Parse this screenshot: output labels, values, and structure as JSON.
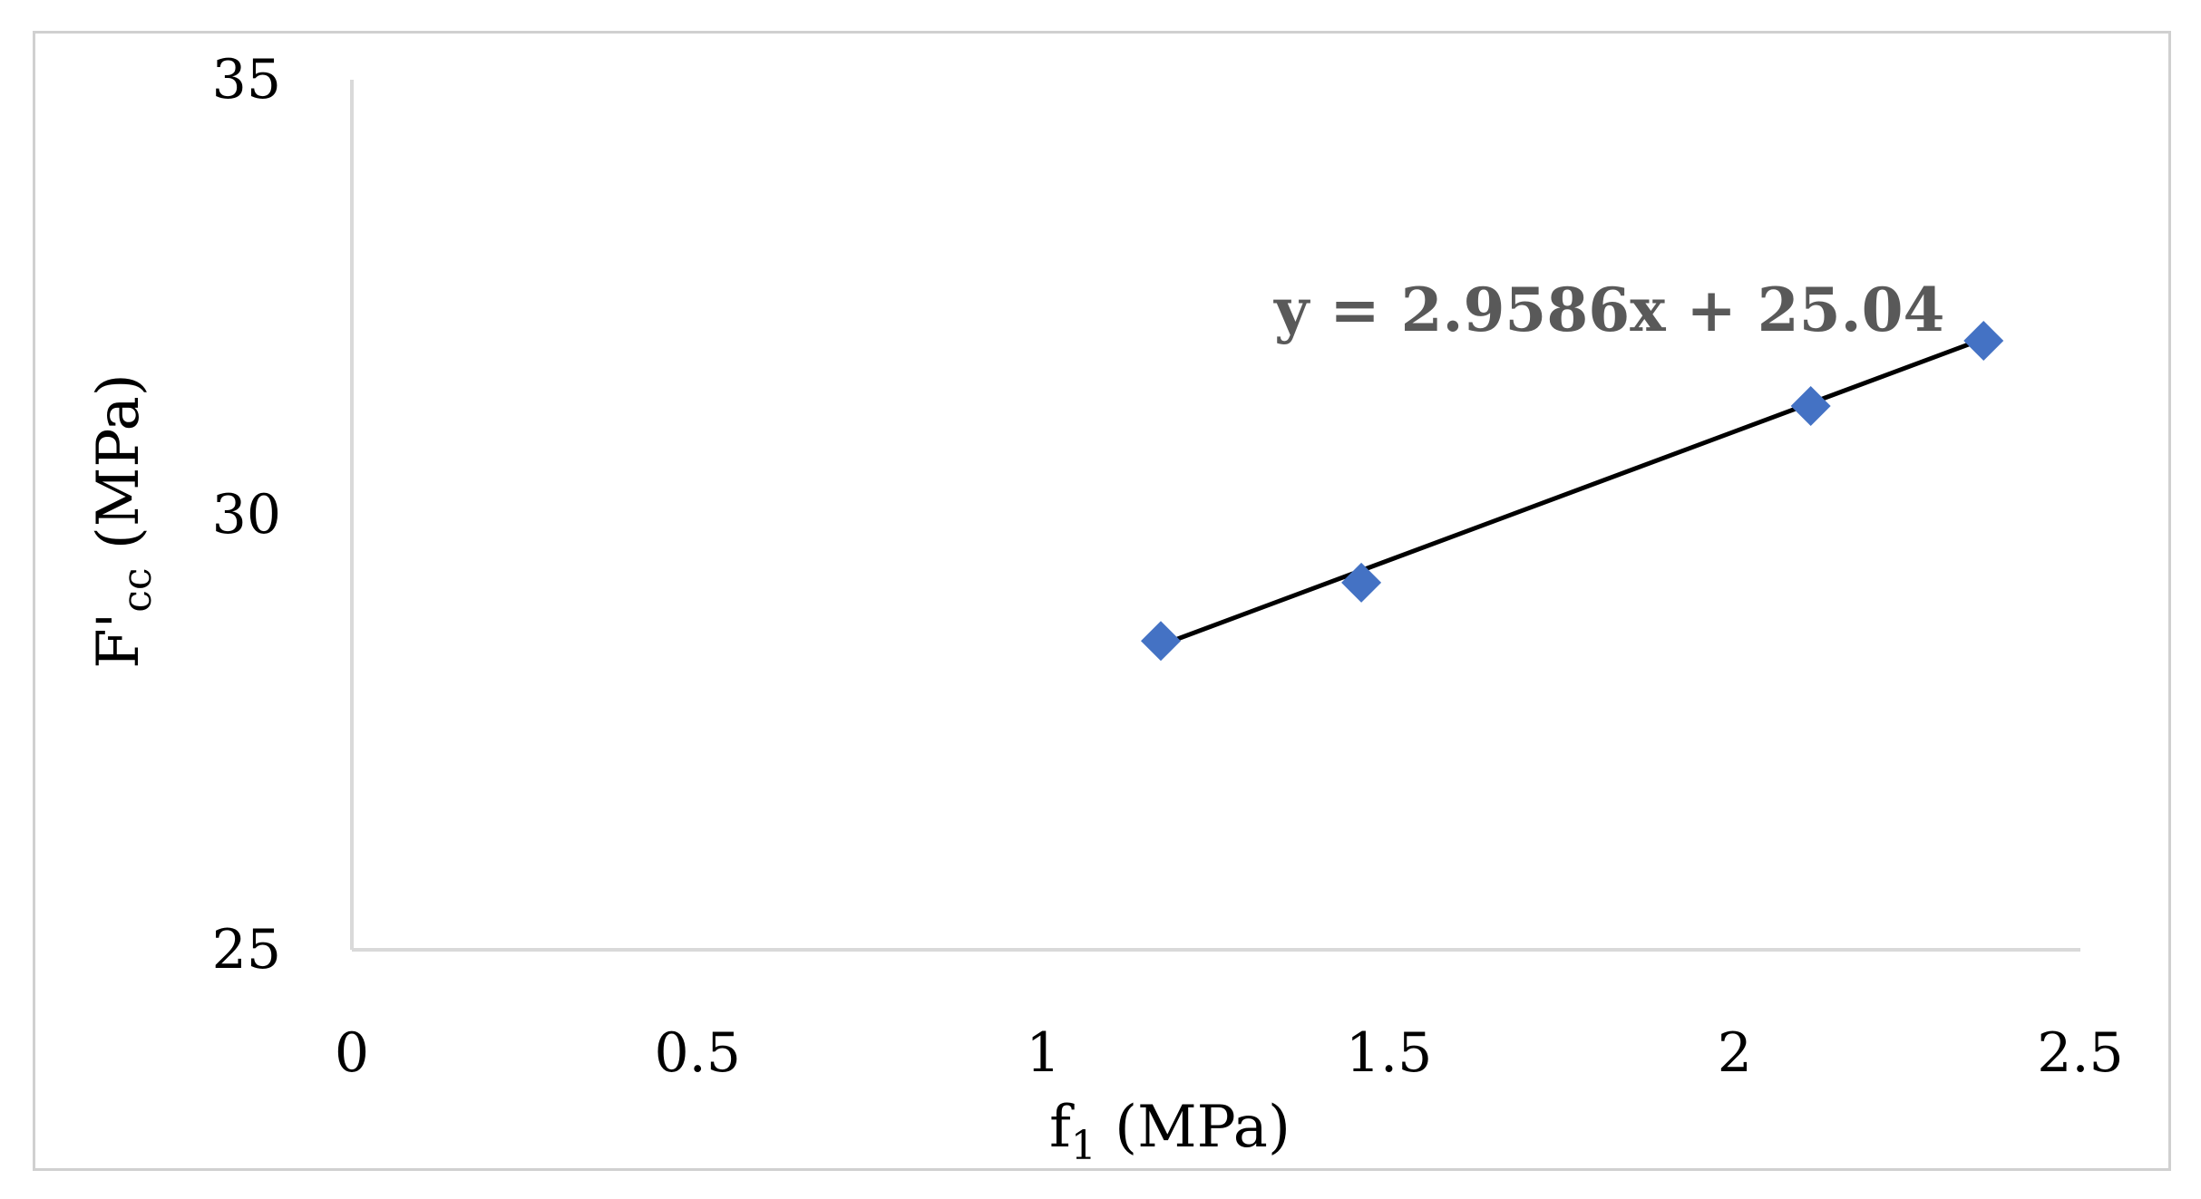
{
  "chart_data": {
    "type": "scatter",
    "xlabel": "f",
    "xlabel_sub": "1",
    "xlabel_unit": " (MPa)",
    "ylabel": "F'",
    "ylabel_sub": "cc",
    "ylabel_unit": " (MPa)",
    "xlim": [
      0,
      2.5
    ],
    "ylim": [
      25,
      35
    ],
    "x_ticks": [
      0,
      0.5,
      1,
      1.5,
      2,
      2.5
    ],
    "x_tick_labels": [
      "0",
      "0.5",
      "1",
      "1.5",
      "2",
      "2.5"
    ],
    "y_ticks": [
      25,
      30,
      35
    ],
    "y_tick_labels": [
      "25",
      "30",
      "35"
    ],
    "grid": false,
    "legend": "none",
    "series": [
      {
        "marker": "diamond",
        "color": "#4472C4",
        "x": [
          1.17,
          1.46,
          2.11,
          2.36
        ],
        "y": [
          28.55,
          29.22,
          31.25,
          32.0
        ]
      }
    ],
    "trendline": {
      "type": "linear",
      "slope": 2.9586,
      "intercept": 25.04,
      "x_range": [
        1.17,
        2.36
      ],
      "color": "#000000",
      "equation": "y = 2.9586x + 25.04"
    }
  }
}
